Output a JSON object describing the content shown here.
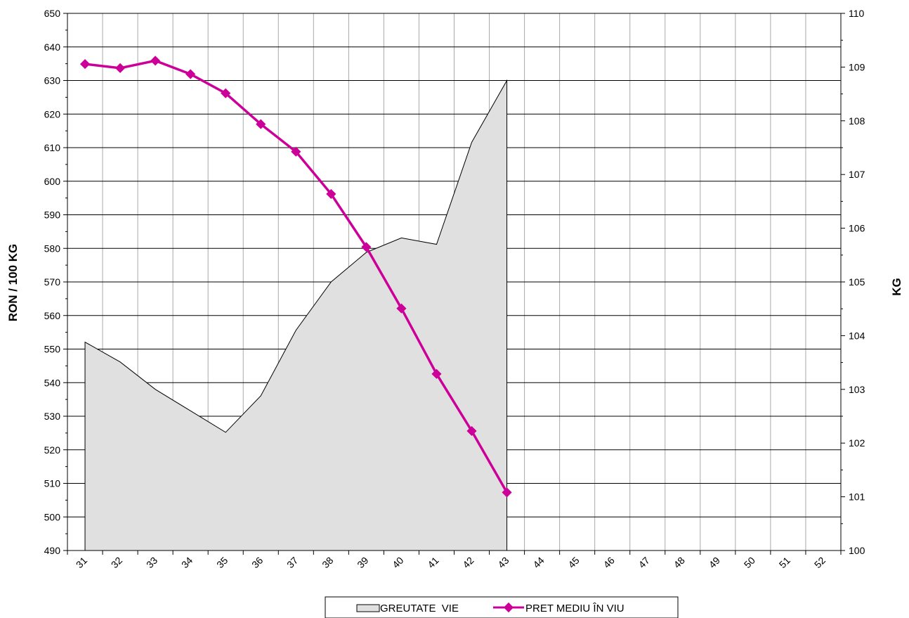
{
  "chart_data": {
    "type": "line",
    "x": [
      31,
      32,
      33,
      34,
      35,
      36,
      37,
      38,
      39,
      40,
      41,
      42,
      43,
      44,
      45,
      46,
      47,
      48,
      49,
      50,
      51,
      52
    ],
    "left_axis": {
      "label": "RON / 100 KG",
      "ylim": [
        490,
        650
      ],
      "ticks": [
        490,
        500,
        510,
        520,
        530,
        540,
        550,
        560,
        570,
        580,
        590,
        600,
        610,
        620,
        630,
        640,
        650
      ]
    },
    "right_axis": {
      "label": "KG",
      "ylim": [
        100,
        110
      ],
      "ticks": [
        100,
        101,
        102,
        103,
        104,
        105,
        106,
        107,
        108,
        109,
        110
      ]
    },
    "grid": true,
    "series": [
      {
        "name": "GREUTATE  VIE",
        "type": "area",
        "axis": "right",
        "color": "#e0e0e0",
        "x": [
          31,
          32,
          33,
          34,
          35,
          36,
          37,
          38,
          39,
          40,
          41,
          42,
          43
        ],
        "values": [
          103.88,
          103.51,
          103.0,
          102.6,
          102.2,
          102.88,
          104.1,
          105.0,
          105.55,
          105.82,
          105.7,
          107.6,
          108.75
        ]
      },
      {
        "name": "PRET MEDIU ÎN VIU",
        "type": "line",
        "axis": "left",
        "color": "#cc0099",
        "x": [
          31,
          32,
          33,
          34,
          35,
          36,
          37,
          38,
          39,
          40,
          41,
          42,
          43
        ],
        "values": [
          634.9,
          633.7,
          635.9,
          631.9,
          626.2,
          617.0,
          608.8,
          596.2,
          580.4,
          562.1,
          542.6,
          525.6,
          507.3
        ]
      }
    ],
    "legend": {
      "position": "bottom-center"
    }
  }
}
